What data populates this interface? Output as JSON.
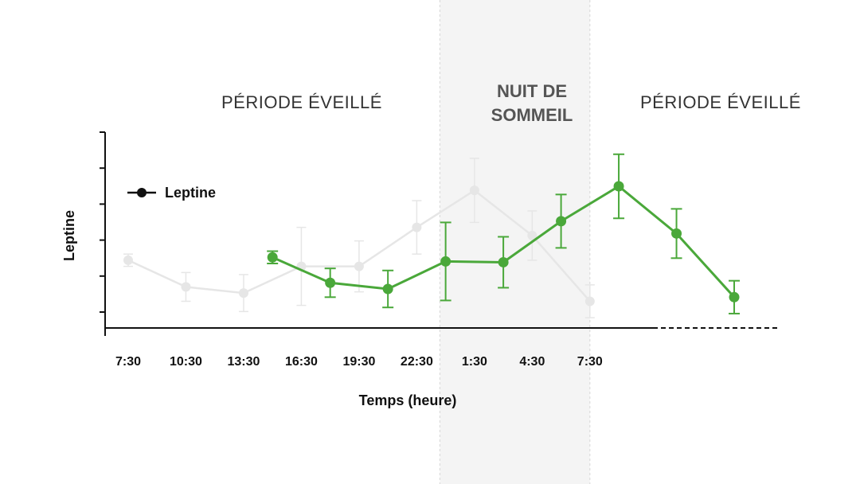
{
  "regions": {
    "wake_left": "PÉRIODE ÉVEILLÉ",
    "night_line1": "NUIT DE",
    "night_line2": "SOMMEIL",
    "wake_right": "PÉRIODE ÉVEILLÉ"
  },
  "colors": {
    "series": "#4aa83a",
    "faded_series": "#e6e6e6",
    "night_band": "#f4f4f4",
    "axis": "#111111"
  },
  "chart_data": {
    "type": "line",
    "title": "",
    "xlabel": "Temps (heure)",
    "ylabel": "Leptine",
    "x_ticks": [
      "7:30",
      "10:30",
      "13:30",
      "16:30",
      "19:30",
      "22:30",
      "1:30",
      "4:30",
      "7:30"
    ],
    "x_tick_index": [
      0,
      1,
      2,
      3,
      4,
      5,
      6,
      7,
      8
    ],
    "xlim": [
      -0.4,
      11.3
    ],
    "ylim": [
      0,
      4.4
    ],
    "y_tick_count": 5,
    "grid": false,
    "legend": {
      "entries": [
        "Leptine"
      ],
      "position": "top-left"
    },
    "night_window": [
      5.4,
      8.0
    ],
    "series": [
      {
        "name": "Leptine",
        "x": [
          2.5,
          3.5,
          4.5,
          5.5,
          6.5,
          7.5,
          8.5,
          9.5,
          10.5
        ],
        "y": [
          1.72,
          1.1,
          0.95,
          1.62,
          1.6,
          2.6,
          3.45,
          2.3,
          0.75
        ],
        "err": [
          0.15,
          0.35,
          0.45,
          0.95,
          0.62,
          0.65,
          0.78,
          0.6,
          0.4
        ]
      }
    ],
    "faded_series": {
      "x": [
        0,
        1,
        2,
        3,
        4,
        5,
        6,
        7,
        8
      ],
      "y": [
        1.65,
        1.0,
        0.85,
        1.5,
        1.5,
        2.45,
        3.35,
        2.25,
        0.65
      ],
      "err": [
        0.15,
        0.35,
        0.45,
        0.95,
        0.62,
        0.65,
        0.78,
        0.6,
        0.4
      ]
    }
  }
}
